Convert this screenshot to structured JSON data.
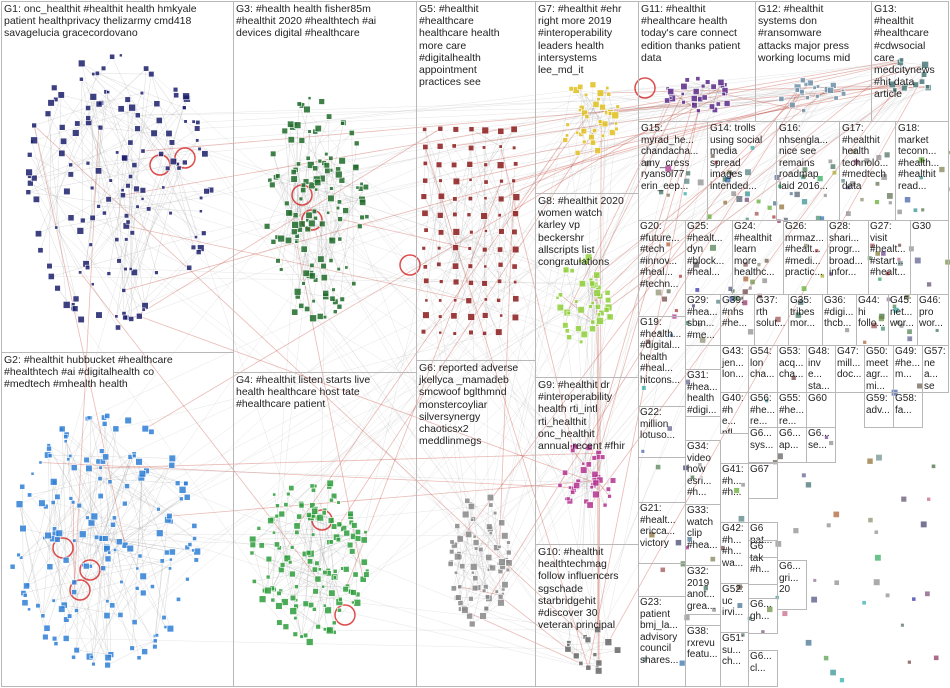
{
  "colors": {
    "background": "#ffffff",
    "box_border": "#b8b8b8",
    "edge_gray": "#9a9a9a",
    "edge_red": "#c0392b",
    "text": "#222222"
  },
  "groups": [
    {
      "id": "G1",
      "label": "G1: onc_healthit #healthit health hmkyale\npatient healthprivacy thelizarmy cmd418\nsavagelucia gracecordovano",
      "color": "#1b1f6b"
    },
    {
      "id": "G2",
      "label": "G2: #healthit hubbucket #healthcare\n#healthtech #ai #digitalhealth co\n#medtech #mhealth health",
      "color": "#2f7fd6"
    },
    {
      "id": "G3",
      "label": "G3: #health health fisher85m\n#healthit 2020 #healthtech #ai\ndevices digital #healthcare",
      "color": "#1e6b2a"
    },
    {
      "id": "G4",
      "label": "G4: #healthit listen starts live\nhealth healthcare host tate\n#healthcare patient",
      "color": "#2e9e3c"
    },
    {
      "id": "G5",
      "label": "G5: #healthit\n#healthcare\nhealthcare health\nmore care\n#digitalhealth\nappointment\npractices see",
      "color": "#8b1a1a"
    },
    {
      "id": "G6",
      "label": "G6: reported adverse\njkellyca _mamadeb\nsmcwoof bglthmnd\nmonstercoyliar\nsilversynergy\nchaoticsx2\nmeddlinmegs",
      "color": "#e58a1f"
    },
    {
      "id": "G7",
      "label": "G7: #healthit #ehr\nright more 2019\n#interoperability\nleaders health\nintersystems\nlee_md_it",
      "color": "#e0c020"
    },
    {
      "id": "G8",
      "label": "G8: #healthit 2020\nwomen watch\nkarley vp\nbeckershr\nallscripts list\ncongratulations",
      "color": "#8fcf3a"
    },
    {
      "id": "G9",
      "label": "G9: #healthit dr\n#interoperability\nhealth rti_intl\nrti_healthit\nonc_healthit\nannual recent #fhir",
      "color": "#b3338f"
    },
    {
      "id": "G10",
      "label": "G10: #healthit\nhealthtechmag\nfollow influencers\nsgschade\nstarbridgehit\n#discover 30\nveteran principal",
      "color": "#666666"
    },
    {
      "id": "G11",
      "label": "G11: #healthit\n#healthcare health\ntoday's care connect\nedition thanks patient\ndata",
      "color": "#5a2a8a"
    },
    {
      "id": "G12",
      "label": "G12: #healthit\nsystems don\n#ransomware\nattacks major press\nworking locums mid",
      "color": "#6f8fa8"
    },
    {
      "id": "G13",
      "label": "G13:\n#healthit\n#healthcare\n#cdwsocial\ncare\nmedcitynews\n#hit data\narticle",
      "color": "#4a7a7a"
    },
    {
      "id": "G14",
      "label": "G14: trolls\nusing social\nmedia\nspread\nimages\nintended...",
      "color": "#3a6e5a"
    },
    {
      "id": "G15",
      "label": "G15:\nmyrad_he...\nchandacha...\namy_cress\nryansol77\nerin_eep...",
      "color": "#8a6a2a"
    },
    {
      "id": "G16",
      "label": "G16:\nnhsengla...\nnice see\nremains\nroadmap\nlaid 2016...",
      "color": "#c06080"
    },
    {
      "id": "G17",
      "label": "G17:\n#healthit\nhealth\ntechnolo...\n#medtech\ndata",
      "color": "#4a9a4a"
    },
    {
      "id": "G18",
      "label": "G18:\nmarket\nteconn...\n#health...\n#healthit\nread...",
      "color": "#9a4a4a"
    },
    {
      "id": "G19",
      "label": "G19:\n#health...\n#digital...\nhealth\n#heal...\nhitcons...",
      "color": "#7a7a2a"
    },
    {
      "id": "G20",
      "label": "G20:\n#future...\n#tech\n#innov...\n#heal...\n#techn...",
      "color": "#3a5aa8"
    },
    {
      "id": "G21",
      "label": "G21:\n#healt...\nericca...\nvictory",
      "color": "#6a3a8a"
    },
    {
      "id": "G22",
      "label": "G22:\nmillion\nlotuso...",
      "color": "#2a8a8a"
    },
    {
      "id": "G23",
      "label": "G23:\npatient\nbmj_la...\nadvisory\ncouncil\nshares...",
      "color": "#8a2a5a"
    },
    {
      "id": "G24",
      "label": "G24:\n#healthit\nlearn\nmore\nhealthc...",
      "color": "#a85a2a"
    },
    {
      "id": "G25",
      "label": "G25:\n#healt...\ndyn\n#block...\n#heal...",
      "color": "#2a6aa8"
    },
    {
      "id": "G26",
      "label": "G26:\nmrmaz...\n#healt...\n#medi...\npractic...",
      "color": "#5aa82a"
    },
    {
      "id": "G27",
      "label": "G27:\nvisit\n#healt...\n#start...\n#healt...",
      "color": "#a82a8a"
    },
    {
      "id": "G28",
      "label": "G28:\nshari...\nprogr...\nbroad...\ninfor...",
      "color": "#2aa85a"
    },
    {
      "id": "G29",
      "label": "G29:\n#hea...\nsbm...\n#me...",
      "color": "#8a8a8a"
    },
    {
      "id": "G30",
      "label": "G30",
      "color": "#5a5a8a"
    },
    {
      "id": "G31",
      "label": "G31:\n#hea...\nhealth\n#digi...",
      "color": "#a8a82a"
    },
    {
      "id": "G32",
      "label": "G32:\n2019\nanot...\ngrea...",
      "color": "#2a2aa8"
    },
    {
      "id": "G33",
      "label": "G33:\nwatch\nclip\n#hea...",
      "color": "#a82a2a"
    },
    {
      "id": "G34",
      "label": "G34:\nvideo\nhow\nesri...\n#h...",
      "color": "#2aa8a8"
    },
    {
      "id": "G35",
      "label": "G35:\ntribes\nmor...",
      "color": "#6a8a3a"
    },
    {
      "id": "G36",
      "label": "G36:\n#digi...\nthcb...",
      "color": "#8a3a6a"
    },
    {
      "id": "G37",
      "label": "G37:\nrth\nsolut...",
      "color": "#3a8a6a"
    },
    {
      "id": "G38",
      "label": "G38:\nrxrevu\nfeatu...",
      "color": "#6a3a3a"
    },
    {
      "id": "G39",
      "label": "G39:\n#nhs\n#he...",
      "color": "#3a6a8a"
    },
    {
      "id": "G40",
      "label": "G40:\n#he...\npfl...",
      "color": "#8a6a8a"
    },
    {
      "id": "G41",
      "label": "G41:\n#h...\n#h...",
      "color": "#6a8a8a"
    },
    {
      "id": "G42",
      "label": "G42:\n#h...\n#h...\nwa...",
      "color": "#8a8a6a"
    },
    {
      "id": "G43",
      "label": "G43:\njen...\nlon...",
      "color": "#4a4a7a"
    },
    {
      "id": "G44",
      "label": "G44:\nhi\nfollo...",
      "color": "#7a4a4a"
    },
    {
      "id": "G45",
      "label": "G45:\nnet...\nwor...",
      "color": "#4a7a4a"
    },
    {
      "id": "G46",
      "label": "G46:\npro\nwor...",
      "color": "#7a7a4a"
    },
    {
      "id": "G47",
      "label": "G47:\nmill...\ndoc...",
      "color": "#4a7a7a"
    },
    {
      "id": "G48",
      "label": "G48:\ninve...\nsta...",
      "color": "#7a4a7a"
    },
    {
      "id": "G49",
      "label": "G49:\n#he...\nm...",
      "color": "#5a5a5a"
    },
    {
      "id": "G50",
      "label": "G50:\nmeetagr...\nmi...",
      "color": "#3a3a6a"
    },
    {
      "id": "G51",
      "label": "G51:\nsu...\nch...",
      "color": "#6a3a3a"
    },
    {
      "id": "G52",
      "label": "G52:\nuc\nirvi...",
      "color": "#3a6a3a"
    },
    {
      "id": "G53",
      "label": "G53:\nacq...\ncha...",
      "color": "#6a6a3a"
    },
    {
      "id": "G54",
      "label": "G54:\nlon\ncha...",
      "color": "#3a6a6a"
    },
    {
      "id": "G55",
      "label": "G55:\n#he...\nre...",
      "color": "#6a3a6a"
    },
    {
      "id": "G56",
      "label": "G56:\n#he...\nre...",
      "color": "#4a5a6a"
    },
    {
      "id": "G57",
      "label": "G57:\nnea...\nsee...",
      "color": "#6a5a4a"
    },
    {
      "id": "G58",
      "label": "G58:\nfa...",
      "color": "#5a6a4a"
    },
    {
      "id": "G59",
      "label": "G59:\nadv...",
      "color": "#4a6a5a"
    },
    {
      "id": "G60",
      "label": "G60",
      "color": "#5a4a6a"
    },
    {
      "id": "G6",
      "label": "G6...\nsys...",
      "color": "#888888"
    },
    {
      "id": "G6b",
      "label": "G6...\nap...",
      "color": "#888888"
    },
    {
      "id": "G6c",
      "label": "G6...\nse...",
      "color": "#888888"
    },
    {
      "id": "G67",
      "label": "G67",
      "color": "#888888"
    },
    {
      "id": "G6d",
      "label": "G6\ntak\n#h...",
      "color": "#888888"
    },
    {
      "id": "G6e",
      "label": "G6\npat...",
      "color": "#888888"
    },
    {
      "id": "G6f",
      "label": "G6...\ngri...\n20",
      "color": "#888888"
    },
    {
      "id": "G6g",
      "label": "G6...\ngh...",
      "color": "#888888"
    },
    {
      "id": "G6h",
      "label": "G6...\ncl...",
      "color": "#888888"
    }
  ]
}
